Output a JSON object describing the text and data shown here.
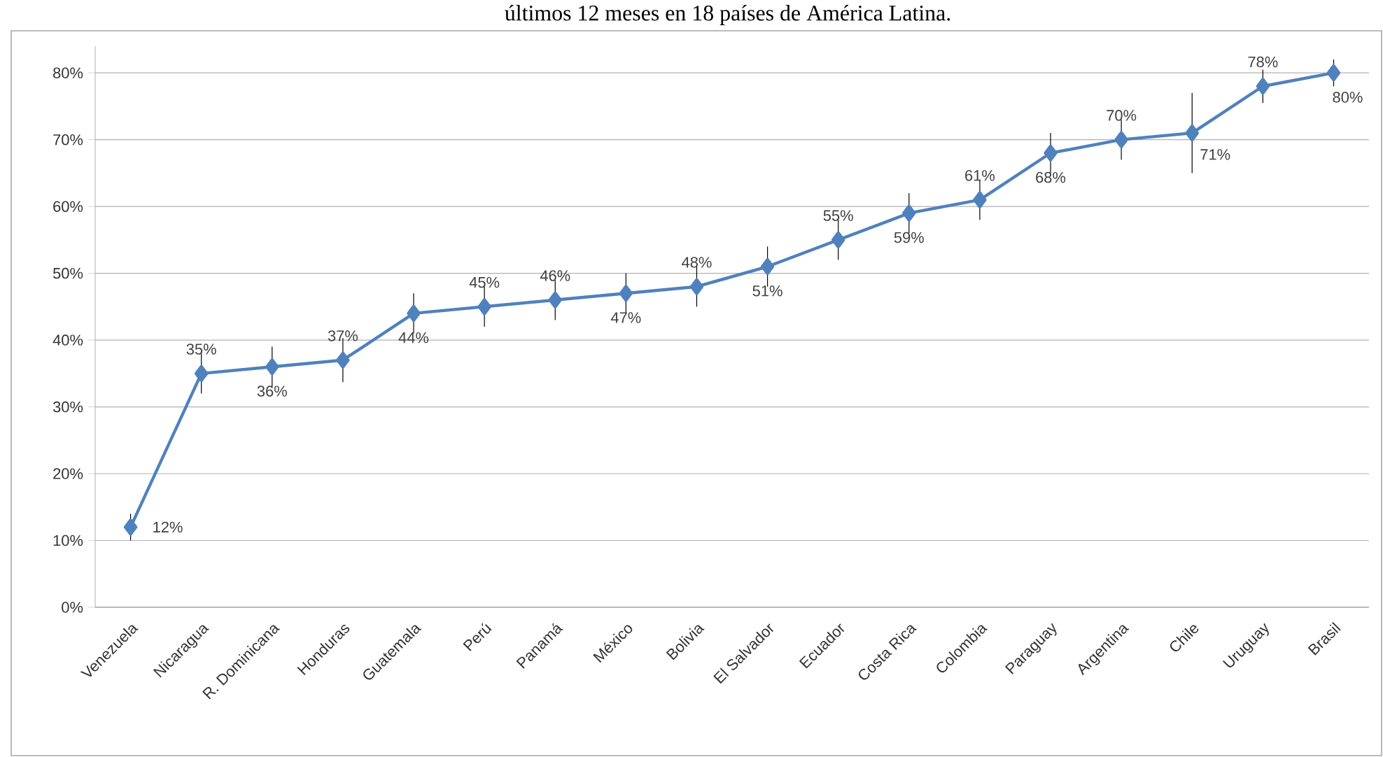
{
  "chart_data": {
    "type": "line",
    "title": "últimos 12 meses en 18 países de América Latina.",
    "categories": [
      "Venezuela",
      "Nicaragua",
      "R. Dominicana",
      "Honduras",
      "Guatemala",
      "Perú",
      "Panamá",
      "México",
      "Bolivia",
      "El Salvador",
      "Ecuador",
      "Costa Rica",
      "Colombia",
      "Paraguay",
      "Argentina",
      "Chile",
      "Uruguay",
      "Brasil"
    ],
    "values": [
      12,
      35,
      36,
      37,
      44,
      45,
      46,
      47,
      48,
      51,
      55,
      59,
      61,
      68,
      70,
      71,
      78,
      80
    ],
    "value_labels": [
      "12%",
      "35%",
      "36%",
      "37%",
      "44%",
      "45%",
      "46%",
      "47%",
      "48%",
      "51%",
      "55%",
      "59%",
      "61%",
      "68%",
      "70%",
      "71%",
      "78%",
      "80%"
    ],
    "errors": [
      2,
      3,
      3,
      3.3,
      3,
      3,
      3,
      3,
      3,
      3,
      3,
      3,
      3,
      3,
      3,
      6,
      2.5,
      2
    ],
    "color": "#4f81bd",
    "marker": "diamond",
    "line_style": "solid",
    "grid": "y",
    "ylim": [
      0,
      84
    ],
    "yticks": [
      {
        "value": 0,
        "label": "0%"
      },
      {
        "value": 10,
        "label": "10%"
      },
      {
        "value": 20,
        "label": "20%"
      },
      {
        "value": 30,
        "label": "30%"
      },
      {
        "value": 40,
        "label": "40%"
      },
      {
        "value": 50,
        "label": "50%"
      },
      {
        "value": 60,
        "label": "60%"
      },
      {
        "value": 70,
        "label": "70%"
      },
      {
        "value": 80,
        "label": "80%"
      }
    ]
  }
}
